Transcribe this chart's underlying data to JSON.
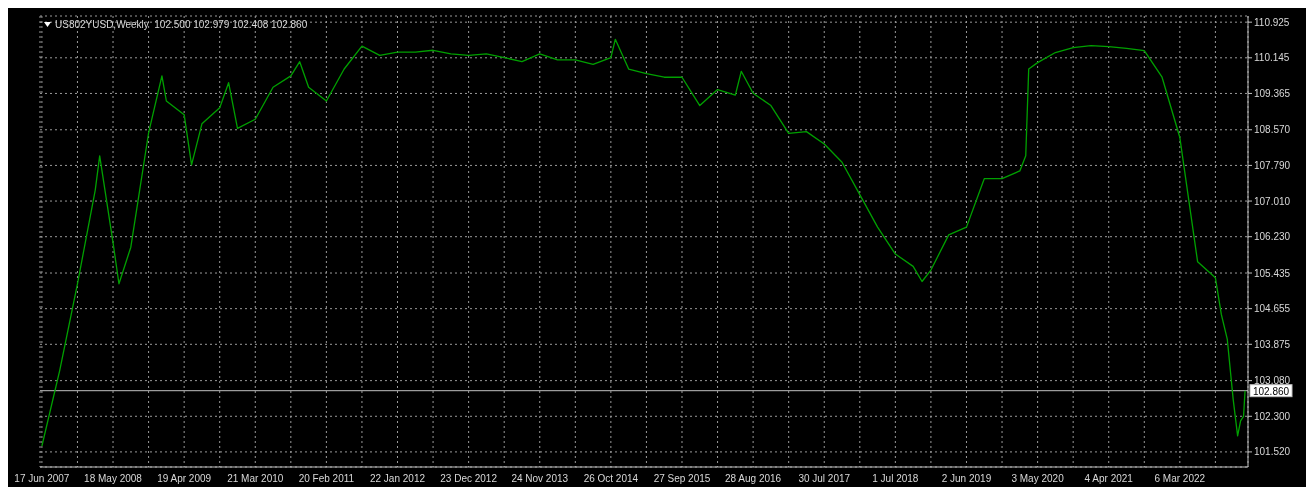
{
  "chart_data": {
    "type": "line",
    "title": "US802YUSD,Weekly  102.500 102.979 102.408 102.860",
    "x": [
      "2007-06-17",
      "2007-09-09",
      "2007-12-02",
      "2008-02-24",
      "2008-03-16",
      "2008-05-18",
      "2008-06-15",
      "2008-08-10",
      "2008-11-02",
      "2009-01-04",
      "2009-01-25",
      "2009-04-19",
      "2009-05-24",
      "2009-07-12",
      "2009-10-04",
      "2009-11-15",
      "2009-12-27",
      "2010-03-21",
      "2010-06-13",
      "2010-09-05",
      "2010-10-17",
      "2010-11-28",
      "2011-02-20",
      "2011-05-15",
      "2011-08-07",
      "2011-10-30",
      "2012-01-22",
      "2012-04-15",
      "2012-07-08",
      "2012-09-30",
      "2012-12-23",
      "2013-03-17",
      "2013-06-09",
      "2013-09-01",
      "2013-11-24",
      "2014-02-16",
      "2014-05-11",
      "2014-08-03",
      "2014-10-26",
      "2014-11-16",
      "2015-01-18",
      "2015-04-12",
      "2015-07-05",
      "2015-09-27",
      "2015-12-20",
      "2016-03-13",
      "2016-06-05",
      "2016-07-03",
      "2016-08-28",
      "2016-11-20",
      "2017-02-12",
      "2017-05-07",
      "2017-07-30",
      "2017-10-22",
      "2018-01-14",
      "2018-04-08",
      "2018-07-01",
      "2018-09-23",
      "2018-11-04",
      "2018-12-16",
      "2019-03-10",
      "2019-06-02",
      "2019-08-25",
      "2019-11-17",
      "2020-02-09",
      "2020-03-08",
      "2020-03-22",
      "2020-05-03",
      "2020-07-26",
      "2020-10-18",
      "2021-01-10",
      "2021-04-04",
      "2021-06-27",
      "2021-09-19",
      "2021-12-12",
      "2022-03-06",
      "2022-05-29",
      "2022-08-21",
      "2022-09-18",
      "2022-10-16",
      "2022-11-13",
      "2022-12-04",
      "2022-12-18",
      "2023-01-01",
      "2023-01-08"
    ],
    "series": [
      {
        "color": "#00a000",
        "values": [
          101.65,
          103.3,
          105.2,
          107.25,
          108.0,
          106.1,
          105.2,
          106.0,
          108.5,
          109.75,
          109.2,
          108.9,
          107.8,
          108.7,
          109.05,
          109.6,
          108.6,
          108.8,
          109.5,
          109.75,
          110.06,
          109.5,
          109.2,
          109.9,
          110.4,
          110.2,
          110.27,
          110.27,
          110.31,
          110.23,
          110.2,
          110.23,
          110.15,
          110.06,
          110.23,
          110.1,
          110.1,
          110.0,
          110.15,
          110.55,
          109.9,
          109.8,
          109.72,
          109.72,
          109.1,
          109.45,
          109.33,
          109.85,
          109.37,
          109.1,
          108.49,
          108.53,
          108.26,
          107.86,
          107.15,
          106.44,
          105.85,
          105.58,
          105.25,
          105.5,
          106.27,
          106.44,
          107.5,
          107.5,
          107.67,
          108.0,
          109.9,
          110.04,
          110.26,
          110.37,
          110.41,
          110.39,
          110.35,
          110.3,
          109.72,
          108.4,
          105.68,
          105.33,
          104.53,
          103.99,
          102.67,
          101.87,
          102.2,
          102.3,
          102.86
        ]
      }
    ],
    "xlim": [
      "2007-06-08",
      "2023-01-22"
    ],
    "ylim": [
      101.19,
      111.06
    ],
    "xticks": [
      {
        "value": "2007-06-17",
        "label": "17 Jun 2007"
      },
      {
        "value": "2007-12-02",
        "label": null
      },
      {
        "value": "2008-05-18",
        "label": "18 May 2008"
      },
      {
        "value": "2008-11-02",
        "label": null
      },
      {
        "value": "2009-04-19",
        "label": "19 Apr 2009"
      },
      {
        "value": "2009-10-04",
        "label": null
      },
      {
        "value": "2010-03-21",
        "label": "21 Mar 2010"
      },
      {
        "value": "2010-09-05",
        "label": null
      },
      {
        "value": "2011-02-20",
        "label": "20 Feb 2011"
      },
      {
        "value": "2011-08-07",
        "label": null
      },
      {
        "value": "2012-01-22",
        "label": "22 Jan 2012"
      },
      {
        "value": "2012-07-08",
        "label": null
      },
      {
        "value": "2012-12-23",
        "label": "23 Dec 2012"
      },
      {
        "value": "2013-06-09",
        "label": null
      },
      {
        "value": "2013-11-24",
        "label": "24 Nov 2013"
      },
      {
        "value": "2014-05-11",
        "label": null
      },
      {
        "value": "2014-10-26",
        "label": "26 Oct 2014"
      },
      {
        "value": "2015-04-12",
        "label": null
      },
      {
        "value": "2015-09-27",
        "label": "27 Sep 2015"
      },
      {
        "value": "2016-03-13",
        "label": null
      },
      {
        "value": "2016-08-28",
        "label": "28 Aug 2016"
      },
      {
        "value": "2017-02-12",
        "label": null
      },
      {
        "value": "2017-07-30",
        "label": "30 Jul 2017"
      },
      {
        "value": "2018-01-14",
        "label": null
      },
      {
        "value": "2018-07-01",
        "label": "1 Jul 2018"
      },
      {
        "value": "2018-12-16",
        "label": null
      },
      {
        "value": "2019-06-02",
        "label": "2 Jun 2019"
      },
      {
        "value": "2019-11-17",
        "label": null
      },
      {
        "value": "2020-05-03",
        "label": "3 May 2020"
      },
      {
        "value": "2020-10-18",
        "label": null
      },
      {
        "value": "2021-04-04",
        "label": "4 Apr 2021"
      },
      {
        "value": "2021-09-19",
        "label": null
      },
      {
        "value": "2022-03-06",
        "label": "6 Mar 2022"
      },
      {
        "value": "2022-08-21",
        "label": null
      }
    ],
    "yticks": [
      {
        "value": 101.52,
        "label": "101.520"
      },
      {
        "value": 102.3,
        "label": "102.300"
      },
      {
        "value": 103.08,
        "label": "103.080"
      },
      103.875,
      104.655,
      105.435,
      {
        "value": 106.23,
        "label": "106.230"
      },
      {
        "value": 107.01,
        "label": "107.010"
      },
      {
        "value": 107.79,
        "label": "107.790"
      },
      {
        "value": 108.57,
        "label": "108.570"
      },
      109.365,
      110.145,
      110.925
    ],
    "grid": true,
    "marker": "none",
    "ref_lines": [
      {
        "axis": "y",
        "value": 102.86,
        "label": "102.860",
        "color": "#c0c0c0"
      }
    ]
  }
}
